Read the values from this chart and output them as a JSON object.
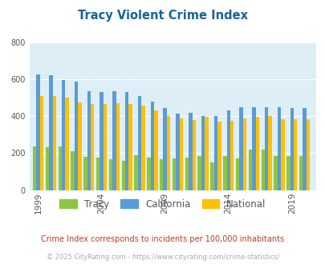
{
  "title": "Tracy Violent Crime Index",
  "title_color": "#1a6496",
  "plot_bg_color": "#ddeef6",
  "years": [
    1999,
    2000,
    2001,
    2002,
    2003,
    2004,
    2005,
    2006,
    2007,
    2008,
    2009,
    2010,
    2011,
    2012,
    2013,
    2014,
    2015,
    2016,
    2017,
    2018,
    2019,
    2020
  ],
  "tracy": [
    235,
    230,
    235,
    210,
    180,
    175,
    165,
    160,
    190,
    175,
    165,
    170,
    175,
    185,
    150,
    185,
    170,
    220,
    220,
    185,
    185,
    185
  ],
  "california": [
    625,
    620,
    595,
    585,
    535,
    530,
    535,
    530,
    510,
    480,
    445,
    415,
    420,
    400,
    400,
    430,
    450,
    450,
    450,
    450,
    445,
    445
  ],
  "national": [
    510,
    510,
    500,
    475,
    465,
    465,
    470,
    465,
    455,
    430,
    400,
    390,
    380,
    395,
    370,
    375,
    390,
    395,
    400,
    385,
    385,
    385
  ],
  "ylim": [
    0,
    800
  ],
  "yticks": [
    0,
    200,
    400,
    600,
    800
  ],
  "tracy_color": "#8dc63f",
  "california_color": "#5b9bd5",
  "national_color": "#ffc000",
  "legend_labels": [
    "Tracy",
    "California",
    "National"
  ],
  "subtitle": "Crime Index corresponds to incidents per 100,000 inhabitants",
  "subtitle_color": "#c0392b",
  "footer": "© 2025 CityRating.com - https://www.cityrating.com/crime-statistics/",
  "footer_color": "#aaaaaa",
  "grid_color": "#ffffff",
  "bar_width": 0.28,
  "xtick_labels": [
    "1999",
    "2004",
    "2009",
    "2014",
    "2019"
  ],
  "xtick_positions": [
    1999,
    2004,
    2009,
    2014,
    2019
  ]
}
